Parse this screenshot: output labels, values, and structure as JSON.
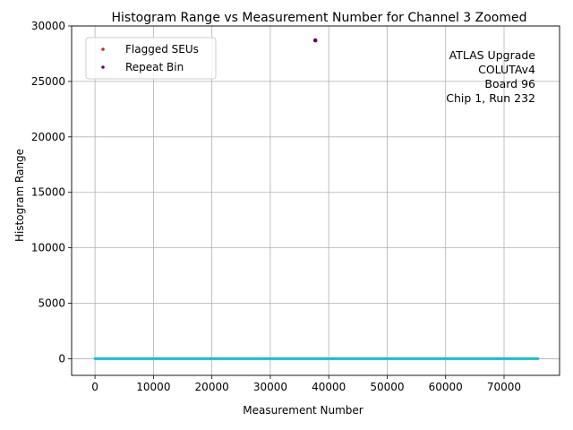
{
  "chart_data": {
    "type": "scatter",
    "title": "Histogram Range vs Measurement Number for Channel 3 Zoomed",
    "xlabel": "Measurement Number",
    "ylabel": "Histogram Range",
    "xlim": [
      -4000,
      79500
    ],
    "ylim": [
      -1500,
      30000
    ],
    "xticks": [
      0,
      10000,
      20000,
      30000,
      40000,
      50000,
      60000,
      70000
    ],
    "xtick_labels": [
      "0",
      "10000",
      "20000",
      "30000",
      "40000",
      "50000",
      "60000",
      "70000"
    ],
    "yticks": [
      0,
      5000,
      10000,
      15000,
      20000,
      25000,
      30000
    ],
    "ytick_labels": [
      "0",
      "5000",
      "10000",
      "15000",
      "20000",
      "25000",
      "30000"
    ],
    "grid": true,
    "legend_position": "upper-left",
    "series": [
      {
        "name": "",
        "kind": "line",
        "color": "#17becf",
        "x": [
          0,
          75800
        ],
        "y": [
          0,
          0
        ]
      },
      {
        "name": "Flagged SEUs",
        "kind": "points",
        "color": "#d62728",
        "x": [],
        "y": []
      },
      {
        "name": "Repeat Bin",
        "kind": "points",
        "color": "#6a0066",
        "x": [
          37700
        ],
        "y": [
          28700
        ]
      }
    ],
    "annotation": [
      "ATLAS Upgrade",
      "COLUTAv4",
      "Board 96",
      "Chip 1, Run 232"
    ]
  }
}
